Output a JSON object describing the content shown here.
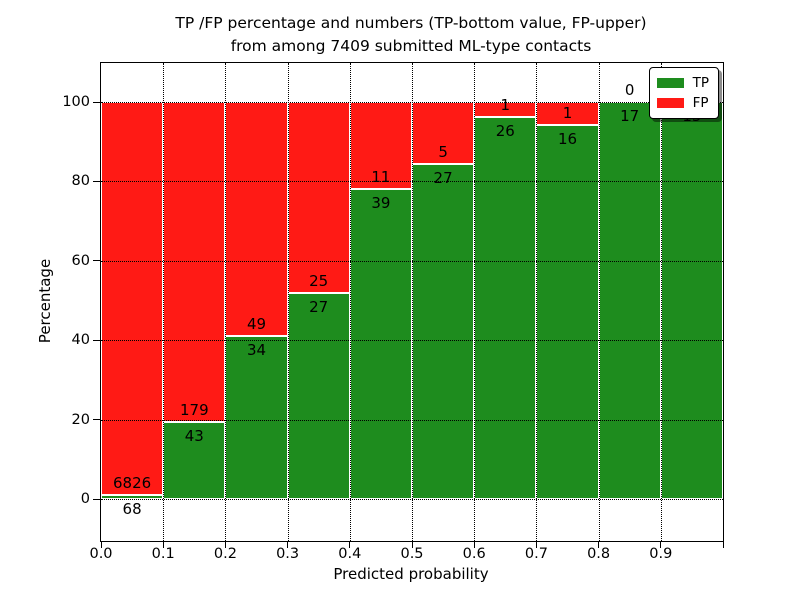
{
  "chart_data": {
    "type": "bar",
    "stacked": true,
    "title_line1": "TP /FP percentage and numbers (TP-bottom value, FP-upper)",
    "title_line2": "from among 7409 submitted ML-type contacts",
    "xlabel": "Predicted probability",
    "ylabel": "Percentage",
    "total_contacts": 7409,
    "xlim": [
      0.0,
      1.0
    ],
    "ylim": [
      -10.6,
      110.3
    ],
    "bin_width": 0.1,
    "grid": true,
    "x_tick_labels": [
      "0.0",
      "0.1",
      "0.2",
      "0.3",
      "0.4",
      "0.5",
      "0.6",
      "0.7",
      "0.8",
      "0.9"
    ],
    "y_tick_labels": [
      "0",
      "20",
      "40",
      "60",
      "80",
      "100"
    ],
    "y_gridline_values": [
      0,
      20,
      40,
      60,
      80,
      100
    ],
    "colors": {
      "tp": "#1e8c1e",
      "fp": "#ff1a15",
      "grid": "#000000",
      "bar_edge": "#ffffff"
    },
    "series": [
      {
        "name": "TP",
        "color": "#1e8c1e",
        "values": [
          68,
          43,
          34,
          27,
          39,
          27,
          26,
          16,
          17,
          15
        ]
      },
      {
        "name": "FP",
        "color": "#ff1a15",
        "values": [
          6826,
          179,
          49,
          25,
          11,
          5,
          1,
          1,
          0,
          0
        ]
      }
    ],
    "bar_count_labels": {
      "tp": [
        "68",
        "43",
        "34",
        "27",
        "39",
        "27",
        "26",
        "16",
        "17",
        "15"
      ],
      "fp": [
        "6826",
        "179",
        "49",
        "25",
        "11",
        "5",
        "1",
        "1",
        "0",
        null
      ]
    },
    "legend": {
      "position": "upper right",
      "entries": [
        {
          "label": "TP",
          "color": "#1e8c1e"
        },
        {
          "label": "FP",
          "color": "#ff1a15"
        }
      ]
    }
  }
}
